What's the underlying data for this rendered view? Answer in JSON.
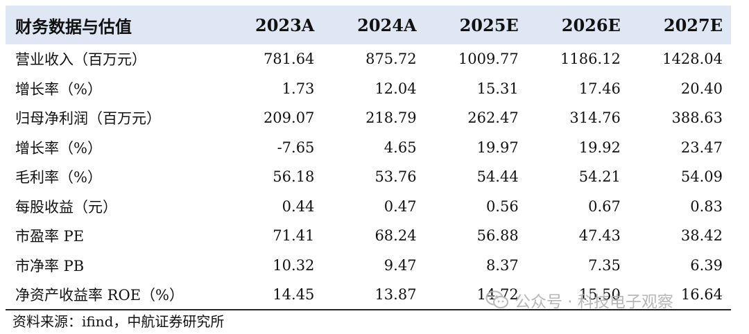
{
  "table": {
    "headers": [
      "财务数据与估值",
      "2023A",
      "2024A",
      "2025E",
      "2026E",
      "2027E"
    ],
    "rows": [
      {
        "label": "营业收入（百万元）",
        "values": [
          "781.64",
          "875.72",
          "1009.77",
          "1186.12",
          "1428.04"
        ]
      },
      {
        "label": "增长率（%）",
        "values": [
          "1.73",
          "12.04",
          "15.31",
          "17.46",
          "20.40"
        ]
      },
      {
        "label": "归母净利润（百万元）",
        "values": [
          "209.07",
          "218.79",
          "262.47",
          "314.76",
          "388.63"
        ]
      },
      {
        "label": "增长率（%）",
        "values": [
          "-7.65",
          "4.65",
          "19.97",
          "19.92",
          "23.47"
        ]
      },
      {
        "label": "毛利率（%）",
        "values": [
          "56.18",
          "53.76",
          "54.44",
          "54.21",
          "54.09"
        ]
      },
      {
        "label": "每股收益（元）",
        "values": [
          "0.44",
          "0.47",
          "0.56",
          "0.67",
          "0.83"
        ]
      },
      {
        "label": "市盈率 PE",
        "values": [
          "71.41",
          "68.24",
          "56.88",
          "47.43",
          "38.42"
        ]
      },
      {
        "label": "市净率 PB",
        "values": [
          "10.32",
          "9.47",
          "8.37",
          "7.35",
          "6.39"
        ]
      },
      {
        "label": "净资产收益率 ROE（%）",
        "values": [
          "14.45",
          "13.87",
          "14.72",
          "15.50",
          "16.64"
        ]
      }
    ]
  },
  "source": "资料来源：ifind，中航证券研究所",
  "watermark": {
    "text": "公众号 · 科技电子观察",
    "icon": "wechat-icon"
  },
  "colors": {
    "header_bg": "#dfe6f4",
    "text": "#111111",
    "watermark": "#b0b0b0"
  }
}
